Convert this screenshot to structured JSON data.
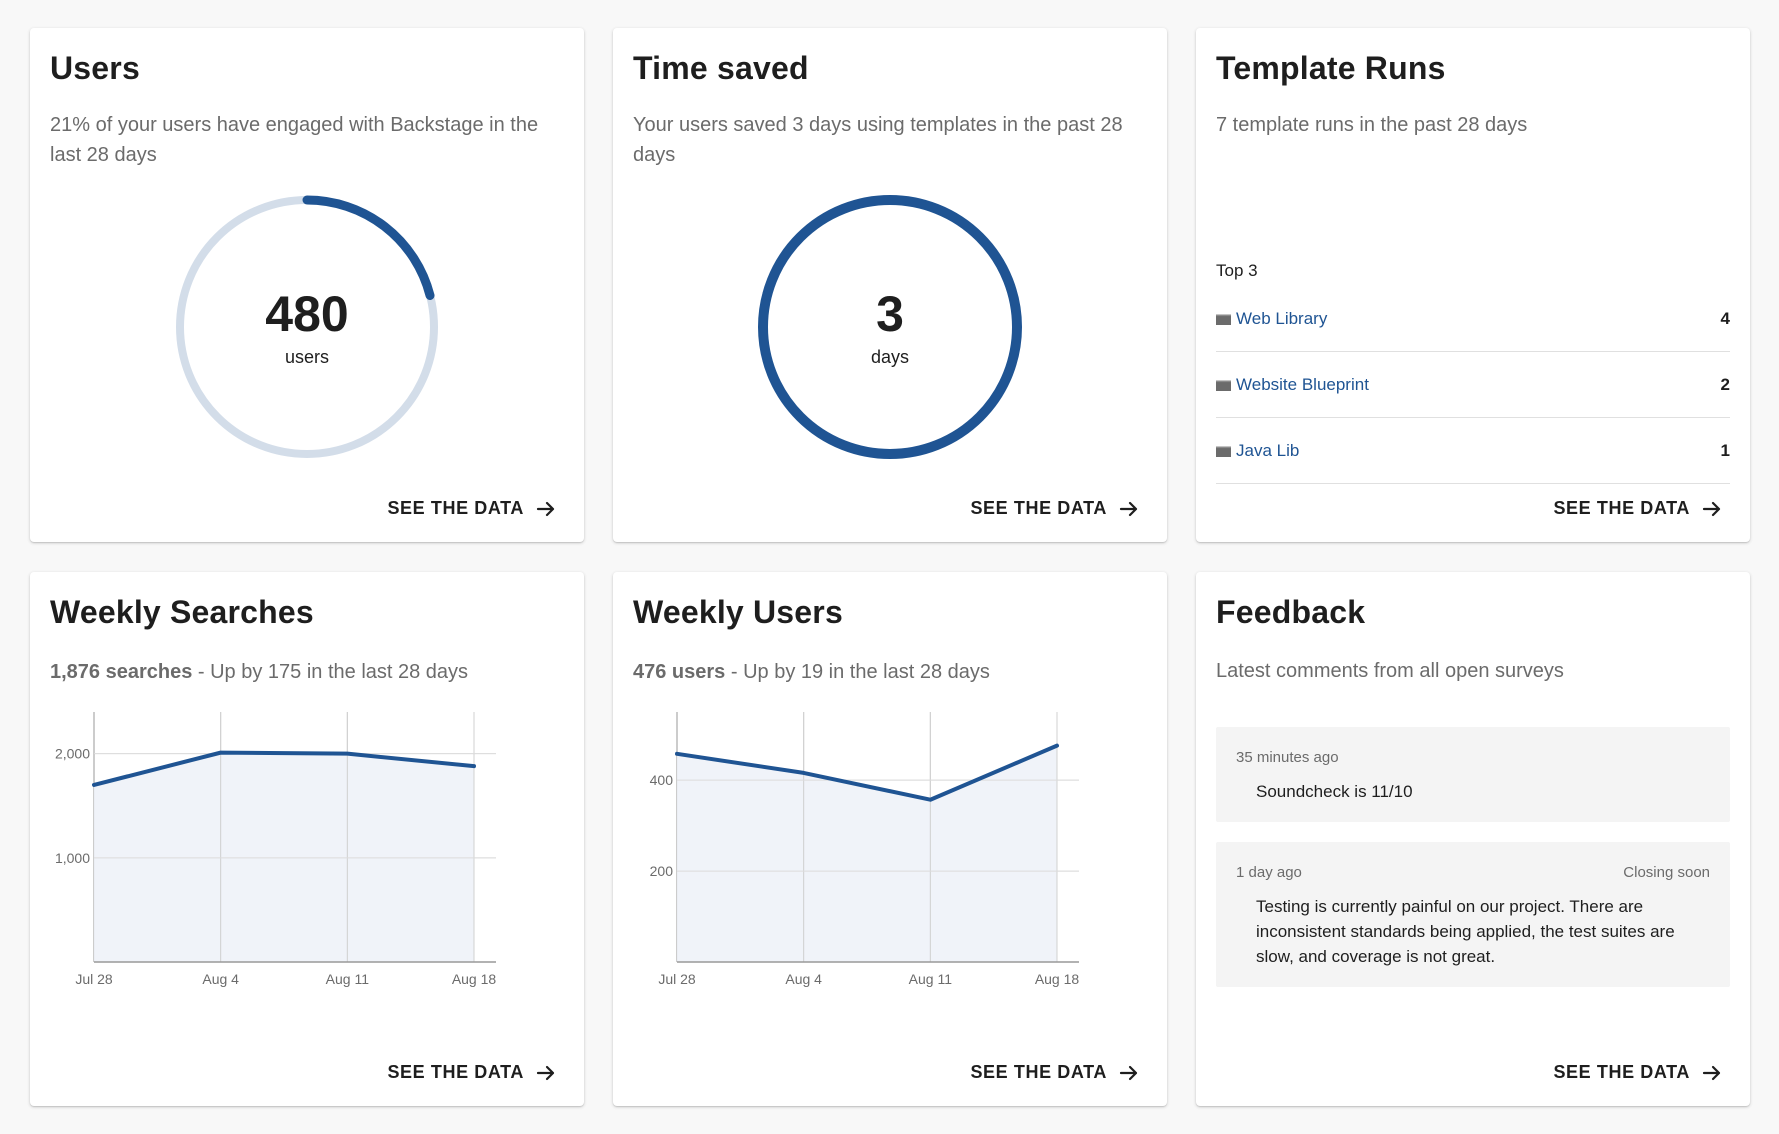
{
  "colors": {
    "accent": "#1f5493",
    "ring_track": "#d3dde9",
    "area_fill": "#eef2f8",
    "grid": "#dddddd"
  },
  "see_data_label": "SEE THE DATA",
  "users_card": {
    "title": "Users",
    "subtitle": "21% of your users have engaged with Backstage in the last 28 days",
    "value": "480",
    "unit": "users",
    "progress_fraction": 0.21
  },
  "time_card": {
    "title": "Time saved",
    "subtitle": "Your users saved 3 days using templates in the past 28 days",
    "value": "3",
    "unit": "days",
    "progress_fraction": 1.0
  },
  "templates_card": {
    "title": "Template Runs",
    "subtitle": "7 template runs in the past 28 days",
    "top_label": "Top 3",
    "items": [
      {
        "name": "Web Library",
        "count": "4",
        "icon": "template-icon"
      },
      {
        "name": "Website Blueprint",
        "count": "2",
        "icon": "template-icon"
      },
      {
        "name": "Java Lib",
        "count": "1",
        "icon": "template-icon"
      }
    ]
  },
  "searches_card": {
    "title": "Weekly Searches",
    "subtitle_bold": "1,876 searches",
    "subtitle_rest": " - Up by 175 in the last 28 days"
  },
  "weekly_users_card": {
    "title": "Weekly Users",
    "subtitle_bold": "476 users",
    "subtitle_rest": " - Up by 19 in the last 28 days"
  },
  "feedback_card": {
    "title": "Feedback",
    "subtitle": "Latest comments from all open surveys",
    "comments": [
      {
        "time": "35 minutes ago",
        "badge": "",
        "text": "Soundcheck is 11/10"
      },
      {
        "time": "1 day ago",
        "badge": "Closing soon",
        "text": "Testing is currently painful on our project. There are inconsistent standards being applied, the test suites are slow, and coverage is not great."
      }
    ]
  },
  "chart_data": [
    {
      "type": "area",
      "categories": [
        "Jul 28",
        "Aug 4",
        "Aug 11",
        "Aug 18"
      ],
      "values": [
        1700,
        2010,
        2000,
        1880
      ],
      "yticks": [
        1000,
        2000
      ],
      "ytick_labels": [
        "1,000",
        "2,000"
      ],
      "ylim": [
        0,
        2400
      ]
    },
    {
      "type": "area",
      "categories": [
        "Jul 28",
        "Aug 4",
        "Aug 11",
        "Aug 18"
      ],
      "values": [
        458,
        416,
        357,
        476
      ],
      "yticks": [
        200,
        400
      ],
      "ytick_labels": [
        "200",
        "400"
      ],
      "ylim": [
        0,
        550
      ]
    }
  ]
}
